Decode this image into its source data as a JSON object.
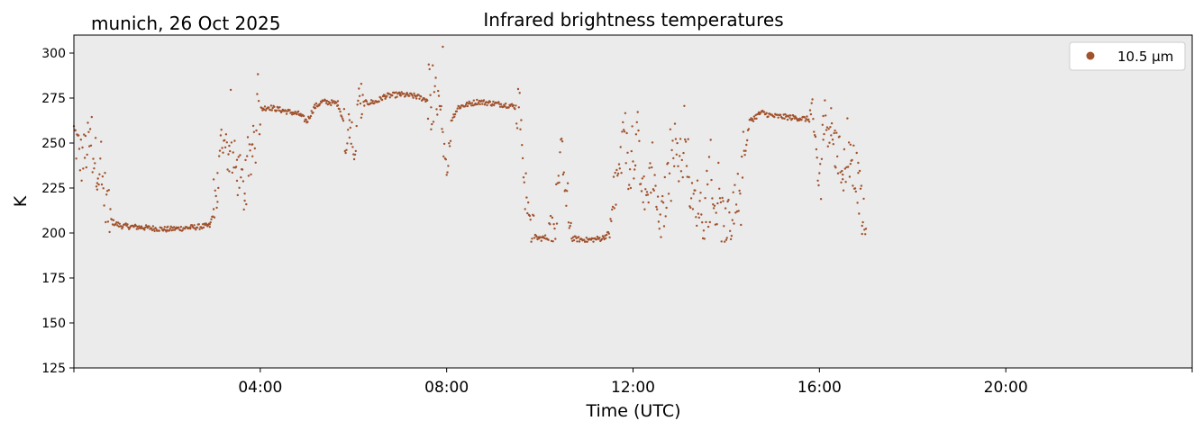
{
  "chart_data": {
    "type": "scatter",
    "title": "Infrared brightness temperatures",
    "subtitle": "munich, 26 Oct 2025",
    "xlabel": "Time (UTC)",
    "ylabel": "K",
    "xlim_hours": [
      0,
      24
    ],
    "ylim": [
      125,
      310
    ],
    "x_ticks": [
      {
        "hour": 4,
        "label": "04:00"
      },
      {
        "hour": 8,
        "label": "08:00"
      },
      {
        "hour": 12,
        "label": "12:00"
      },
      {
        "hour": 16,
        "label": "16:00"
      },
      {
        "hour": 20,
        "label": "20:00"
      }
    ],
    "y_ticks": [
      125,
      150,
      175,
      200,
      225,
      250,
      275,
      300
    ],
    "grid": false,
    "legend_position": "top-right",
    "background_color": "#ebebeb",
    "series": [
      {
        "name": "10.5 µm",
        "color": "#a0522d",
        "baseline_points": [
          [
            "00:00",
            255
          ],
          [
            "00:10",
            240
          ],
          [
            "00:20",
            250
          ],
          [
            "00:30",
            238
          ],
          [
            "00:40",
            222
          ],
          [
            "00:45",
            210
          ],
          [
            "00:50",
            206
          ],
          [
            "01:00",
            204
          ],
          [
            "01:30",
            203
          ],
          [
            "02:00",
            202
          ],
          [
            "02:30",
            203
          ],
          [
            "02:55",
            204
          ],
          [
            "03:00",
            212
          ],
          [
            "03:05",
            225
          ],
          [
            "03:10",
            250
          ],
          [
            "03:20",
            245
          ],
          [
            "03:30",
            235
          ],
          [
            "03:40",
            222
          ],
          [
            "03:50",
            245
          ],
          [
            "03:55",
            268
          ],
          [
            "04:10",
            270
          ],
          [
            "04:30",
            268
          ],
          [
            "04:50",
            266
          ],
          [
            "05:00",
            262
          ],
          [
            "05:10",
            270
          ],
          [
            "05:20",
            273
          ],
          [
            "05:40",
            272
          ],
          [
            "05:50",
            258
          ],
          [
            "05:55",
            265
          ],
          [
            "06:00",
            240
          ],
          [
            "06:05",
            262
          ],
          [
            "06:10",
            272
          ],
          [
            "06:30",
            273
          ],
          [
            "06:40",
            276
          ],
          [
            "07:00",
            277
          ],
          [
            "07:20",
            276
          ],
          [
            "07:35",
            274
          ],
          [
            "07:40",
            262
          ],
          [
            "07:45",
            274
          ],
          [
            "07:50",
            270
          ],
          [
            "07:55",
            250
          ],
          [
            "08:00",
            225
          ],
          [
            "08:05",
            262
          ],
          [
            "08:15",
            270
          ],
          [
            "08:40",
            273
          ],
          [
            "09:00",
            272
          ],
          [
            "09:20",
            271
          ],
          [
            "09:30",
            270
          ],
          [
            "09:35",
            266
          ],
          [
            "09:40",
            230
          ],
          [
            "09:45",
            210
          ],
          [
            "09:50",
            198
          ],
          [
            "10:00",
            197
          ],
          [
            "10:20",
            198
          ],
          [
            "10:25",
            235
          ],
          [
            "10:30",
            245
          ],
          [
            "10:35",
            220
          ],
          [
            "10:40",
            197
          ],
          [
            "11:00",
            196
          ],
          [
            "11:20",
            197
          ],
          [
            "11:30",
            200
          ],
          [
            "11:40",
            230
          ],
          [
            "11:50",
            255
          ],
          [
            "11:55",
            228
          ],
          [
            "12:05",
            255
          ],
          [
            "12:15",
            215
          ],
          [
            "12:25",
            240
          ],
          [
            "12:35",
            200
          ],
          [
            "12:45",
            230
          ],
          [
            "12:50",
            255
          ],
          [
            "13:00",
            240
          ],
          [
            "13:10",
            245
          ],
          [
            "13:15",
            215
          ],
          [
            "13:25",
            218
          ],
          [
            "13:30",
            210
          ],
          [
            "13:40",
            220
          ],
          [
            "13:50",
            212
          ],
          [
            "14:00",
            203
          ],
          [
            "14:10",
            210
          ],
          [
            "14:20",
            230
          ],
          [
            "14:30",
            262
          ],
          [
            "14:45",
            267
          ],
          [
            "15:00",
            265
          ],
          [
            "15:30",
            264
          ],
          [
            "15:50",
            263
          ],
          [
            "15:55",
            250
          ],
          [
            "16:00",
            225
          ],
          [
            "16:05",
            262
          ],
          [
            "16:15",
            262
          ],
          [
            "16:20",
            248
          ],
          [
            "16:30",
            235
          ],
          [
            "16:40",
            245
          ],
          [
            "16:50",
            228
          ],
          [
            "16:55",
            210
          ],
          [
            "17:00",
            198
          ]
        ]
      }
    ]
  }
}
